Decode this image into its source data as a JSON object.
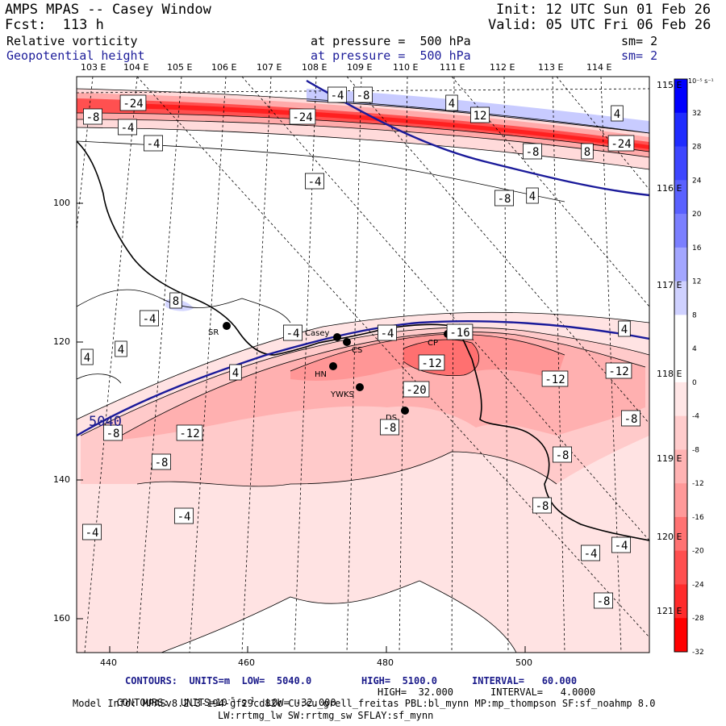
{
  "header": {
    "title": "AMPS MPAS -- Casey Window",
    "fcst": "Fcst:  113 h",
    "init": "Init: 12 UTC Sun 01 Feb 26",
    "valid": "Valid: 05 UTC Fri 06 Feb 26",
    "field1_name": "Relative vorticity",
    "field1_level": "at pressure =  500 hPa",
    "field1_sm": "sm= 2",
    "field2_name": "Geopotential height",
    "field2_level": "at pressure =  500 hPa",
    "field2_sm": "sm= 2"
  },
  "axes": {
    "top_lon_labels": [
      "103 E",
      "104 E",
      "105 E",
      "106 E",
      "107 E",
      "108 E",
      "109 E",
      "110 E",
      "111 E",
      "112 E",
      "113 E",
      "114 E"
    ],
    "right_lon_labels": [
      "115 E",
      "116 E",
      "117 E",
      "118 E",
      "119 E",
      "120 E",
      "121 E"
    ],
    "x_ticks": [
      "440",
      "460",
      "480",
      "500"
    ],
    "y_ticks": [
      "100",
      "120",
      "140",
      "160"
    ]
  },
  "colorbar": {
    "units": "10⁻⁵ s⁻¹",
    "labels": [
      "32",
      "28",
      "24",
      "20",
      "16",
      "12",
      "8",
      "4",
      "0",
      "-4",
      "-8",
      "-12",
      "-16",
      "-20",
      "-24",
      "-28",
      "-32"
    ],
    "colors": [
      "#0000ff",
      "#1f2cff",
      "#3d46ff",
      "#5a61ff",
      "#7b7fff",
      "#a3a6ff",
      "#cfd1ff",
      "#ffffff",
      "#ffffff",
      "#ffe6e6",
      "#ffcccc",
      "#ffb3b3",
      "#ff9999",
      "#ff7272",
      "#ff4f4f",
      "#ff2b2b",
      "#ff0000"
    ]
  },
  "stations": [
    {
      "label": "SR"
    },
    {
      "label": "Casey"
    },
    {
      "label": "CS"
    },
    {
      "label": "HN"
    },
    {
      "label": "YWKS"
    },
    {
      "label": "DS"
    },
    {
      "label": "CP"
    }
  ],
  "contour_labels": [
    "-24",
    "-8",
    "-4",
    "-4",
    "-24",
    "-4",
    "-8",
    "4",
    "12",
    "4",
    "-8",
    "8",
    "-24",
    "-4",
    "-8",
    "4",
    "-4",
    "4",
    "4",
    "8",
    "-4",
    "-4",
    "-12",
    "-16",
    "-20",
    "-12",
    "-12",
    "4",
    "4",
    "-8",
    "-8",
    "-12",
    "-8",
    "-8",
    "-8",
    "-8",
    "-4",
    "-4",
    "-4",
    "-4",
    "-8"
  ],
  "height_contour_label": "5040",
  "footer": {
    "line1_units": "CONTOURS:  UNITS=m  LOW=  5040.0",
    "line1_high": "HIGH=  5100.0",
    "line1_interval": "INTERVAL=   60.000",
    "line2_units": "CONTOURS:  UNITS=10",
    "line2_exp": "-5",
    "line2_s": " s",
    "line2_sexp": "-1",
    "line2_low": "  LOW= -32.000",
    "line2_high": "HIGH=  32.000",
    "line2_interval": "INTERVAL=   4.0000",
    "model_info": "Model Info: MPASv8.2.3-194-gf29cd82c CU:cu_grell_freitas PBL:bl_mynn MP:mp_thompson SF:sf_noahmp 8.0",
    "model_info2": "LW:rrtmg_lw SW:rrtmg_sw SFLAY:sf_mynn"
  }
}
